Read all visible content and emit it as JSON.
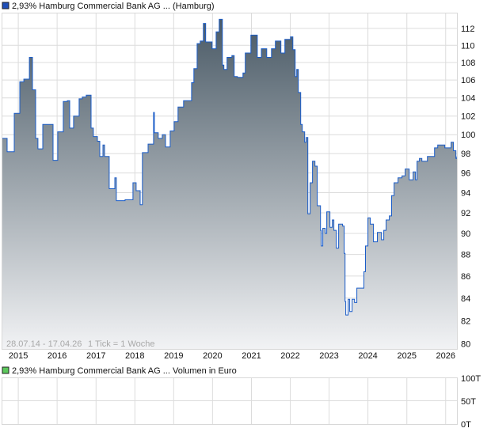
{
  "chart_data": [
    {
      "type": "area",
      "legend_label": "2,93% Hamburg Commercial Bank AG ... (Hamburg)",
      "range_label": "28.07.14 - 17.04.26",
      "tick_label": "1 Tick = 1 Woche",
      "y_scale": "log",
      "ylim": [
        79.5,
        113.9
      ],
      "xlim": [
        "2014-07-28",
        "2026-04-17"
      ],
      "grid": true,
      "y_ticks": [
        80,
        82,
        84,
        86,
        88,
        90,
        92,
        94,
        96,
        98,
        100,
        102,
        104,
        106,
        108,
        110,
        112
      ],
      "x_ticks": [
        "2015",
        "2016",
        "2017",
        "2018",
        "2019",
        "2020",
        "2021",
        "2022",
        "2023",
        "2024",
        "2025",
        "2026"
      ],
      "colors": {
        "line": "#1a5cc8",
        "fill_top": "#4a5a66",
        "fill_bottom": "#f2f3f5",
        "legend": "#1f4fb8"
      },
      "series": [
        {
          "x": [
            "2014-07-28",
            "2014-09-18",
            "2014-11-24",
            "2015-01-15",
            "2015-02-22",
            "2015-04-15",
            "2015-05-14",
            "2015-06-13",
            "2015-07-05",
            "2015-08-19",
            "2015-11-24",
            "2016-01-07",
            "2016-02-28",
            "2016-04-06",
            "2016-04-28",
            "2016-06-04",
            "2016-07-26",
            "2016-08-25",
            "2016-10-01",
            "2016-11-15",
            "2016-12-07",
            "2017-01-14",
            "2017-02-05",
            "2017-03-07",
            "2017-03-22",
            "2017-05-05",
            "2017-06-27",
            "2017-07-11",
            "2017-10-01",
            "2017-12-14",
            "2018-01-13",
            "2018-02-20",
            "2018-03-13",
            "2018-05-05",
            "2018-06-26",
            "2018-07-03",
            "2018-08-09",
            "2018-09-16",
            "2018-10-16",
            "2018-11-29",
            "2019-01-05",
            "2019-02-11",
            "2019-04-04",
            "2019-05-11",
            "2019-06-18",
            "2019-07-10",
            "2019-08-09",
            "2019-09-07",
            "2019-10-07",
            "2019-10-29",
            "2019-12-06",
            "2019-12-28",
            "2020-02-04",
            "2020-03-04",
            "2020-04-03",
            "2020-04-17",
            "2020-05-17",
            "2020-07-01",
            "2020-07-23",
            "2020-08-22",
            "2020-10-13",
            "2020-11-04",
            "2020-12-27",
            "2021-02-25",
            "2021-04-04",
            "2021-05-25",
            "2021-07-08",
            "2021-08-14",
            "2021-10-05",
            "2021-11-11",
            "2022-01-03",
            "2022-01-25",
            "2022-02-16",
            "2022-03-03",
            "2022-03-18",
            "2022-04-09",
            "2022-04-24",
            "2022-05-16",
            "2022-05-31",
            "2022-06-15",
            "2022-07-07",
            "2022-07-29",
            "2022-08-21",
            "2022-09-12",
            "2022-10-12",
            "2022-10-19",
            "2022-11-03",
            "2022-11-25",
            "2022-12-10",
            "2023-01-09",
            "2023-01-31",
            "2023-02-15",
            "2023-03-09",
            "2023-04-01",
            "2023-05-08",
            "2023-05-23",
            "2023-05-31",
            "2023-06-07",
            "2023-06-29",
            "2023-07-14",
            "2023-08-05",
            "2023-08-28",
            "2023-09-19",
            "2023-11-02",
            "2023-11-24",
            "2023-12-09",
            "2024-01-01",
            "2024-01-23",
            "2024-02-22",
            "2024-03-30",
            "2024-05-07",
            "2024-05-29",
            "2024-06-20",
            "2024-07-20",
            "2024-08-11",
            "2024-09-03",
            "2024-10-10",
            "2024-11-16",
            "2024-12-16",
            "2025-01-23",
            "2025-03-01",
            "2025-03-23",
            "2025-04-07",
            "2025-04-29",
            "2025-05-22",
            "2025-07-13",
            "2025-09-03",
            "2025-09-18",
            "2025-10-18",
            "2025-12-24",
            "2026-02-21",
            "2026-03-15",
            "2026-04-07",
            "2026-04-17"
          ],
          "y": [
            99.6,
            98.2,
            102.3,
            105.8,
            106.1,
            108.6,
            104.9,
            99.6,
            98.5,
            101.1,
            97.3,
            100.3,
            103.6,
            103.7,
            100.7,
            102.0,
            103.9,
            104.1,
            104.3,
            100.7,
            99.8,
            99.3,
            97.7,
            98.9,
            97.7,
            94.4,
            95.5,
            93.2,
            93.3,
            95.0,
            94.2,
            92.8,
            98.1,
            99.0,
            102.4,
            100.2,
            99.6,
            100.0,
            98.7,
            100.4,
            101.4,
            103.0,
            103.7,
            103.7,
            105.7,
            107.3,
            110.2,
            110.5,
            112.6,
            110.4,
            110.4,
            109.6,
            111.6,
            113.1,
            107.7,
            107.2,
            108.6,
            108.8,
            106.4,
            106.3,
            106.8,
            109.1,
            111.2,
            108.6,
            109.6,
            108.6,
            109.6,
            110.5,
            109.1,
            110.7,
            111.0,
            109.5,
            106.4,
            107.2,
            104.6,
            101.1,
            100.3,
            99.2,
            99.7,
            91.9,
            95.0,
            97.2,
            96.7,
            92.7,
            90.3,
            88.8,
            90.5,
            90.0,
            92.1,
            90.6,
            91.3,
            90.3,
            88.6,
            90.9,
            90.7,
            88.1,
            83.7,
            82.5,
            83.9,
            82.8,
            83.9,
            83.6,
            84.9,
            84.9,
            86.4,
            88.8,
            91.5,
            90.9,
            89.2,
            90.1,
            89.4,
            90.3,
            91.3,
            91.7,
            93.7,
            95.0,
            95.5,
            95.7,
            96.4,
            95.3,
            96.1,
            95.3,
            97.2,
            97.5,
            97.2,
            97.7,
            97.7,
            98.6,
            98.9,
            98.6,
            99.2,
            98.3,
            97.5,
            97.7
          ]
        }
      ]
    },
    {
      "type": "bar",
      "legend_label": "2,93% Hamburg Commercial Bank AG ... Volumen in Euro",
      "ylim": [
        0,
        100000
      ],
      "y_tick_labels": [
        "100T",
        "50T",
        "0T"
      ],
      "grid": true,
      "colors": {
        "legend": "#5cc85c"
      },
      "values": []
    }
  ]
}
